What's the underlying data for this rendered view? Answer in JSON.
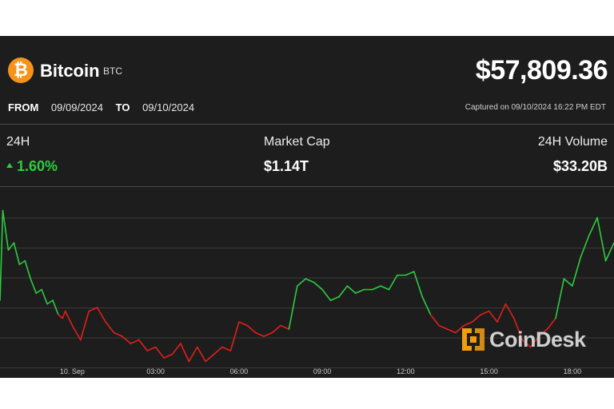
{
  "header": {
    "coin_name": "Bitcoin",
    "coin_symbol": "BTC",
    "logo_glyph": "₿",
    "price": "$57,809.36",
    "from_label": "FROM",
    "from_date": "09/09/2024",
    "to_label": "TO",
    "to_date": "09/10/2024",
    "captured": "Captured on 09/10/2024 16:22 PM EDT"
  },
  "stats": {
    "change_label": "24H",
    "change_value": "1.60%",
    "market_cap_label": "Market Cap",
    "market_cap_value": "$1.14T",
    "volume_label": "24H Volume",
    "volume_value": "$33.20B"
  },
  "watermark": {
    "text": "CoinDesk"
  },
  "colors": {
    "up": "#2ecc40",
    "down": "#e0201b",
    "background": "#1d1d1d",
    "logo": "#f7931a"
  },
  "chart_data": {
    "type": "line",
    "title": "",
    "xlabel": "",
    "ylabel": "",
    "x_ticks": [
      "10. Sep",
      "03:00",
      "06:00",
      "09:00",
      "12:00",
      "15:00",
      "18:00"
    ],
    "x_tick_hours": [
      0,
      3,
      6,
      9,
      12,
      15,
      18
    ],
    "x_range_hours": [
      -2.6,
      19.5
    ],
    "reference_price": 56900,
    "ylim": [
      56100,
      58300
    ],
    "grid": "horizontal",
    "series": [
      {
        "x_hours": [
          -2.6,
          -2.5,
          -2.3,
          -2.1,
          -1.9,
          -1.7,
          -1.5,
          -1.3,
          -1.1,
          -0.9,
          -0.7,
          -0.5,
          -0.35,
          -0.25,
          0,
          0.3,
          0.6,
          0.9,
          1.2,
          1.5,
          1.8,
          2.1,
          2.4,
          2.7,
          3.0,
          3.3,
          3.6,
          3.9,
          4.2,
          4.5,
          4.8,
          5.1,
          5.4,
          5.7,
          6.0,
          6.3,
          6.6,
          6.9,
          7.2,
          7.5,
          7.8,
          8.1,
          8.4,
          8.7,
          9.0,
          9.3,
          9.6,
          9.9,
          10.2,
          10.5,
          10.8,
          11.1,
          11.4,
          11.7,
          12.0,
          12.3,
          12.6,
          12.9,
          13.2,
          13.5,
          13.8,
          14.1,
          14.4,
          14.7,
          15.0,
          15.3,
          15.6,
          15.9,
          16.2,
          16.5,
          16.8,
          17.1,
          17.4,
          17.7,
          18.0,
          18.3,
          18.6,
          18.9,
          19.2,
          19.5
        ],
        "values": [
          57000,
          58250,
          57700,
          57800,
          57500,
          57550,
          57300,
          57100,
          57150,
          56950,
          57000,
          56800,
          56750,
          56850,
          56650,
          56450,
          56850,
          56900,
          56700,
          56550,
          56500,
          56400,
          56450,
          56300,
          56350,
          56200,
          56250,
          56400,
          56150,
          56350,
          56150,
          56250,
          56350,
          56300,
          56700,
          56650,
          56550,
          56500,
          56550,
          56650,
          56600,
          57200,
          57300,
          57250,
          57150,
          57000,
          57050,
          57200,
          57100,
          57150,
          57150,
          57200,
          57150,
          57350,
          57350,
          57400,
          57050,
          56800,
          56650,
          56600,
          56550,
          56650,
          56700,
          56800,
          56850,
          56700,
          56950,
          56750,
          56450,
          56350,
          56500,
          56600,
          56750,
          57300,
          57200,
          57600,
          57900,
          58150,
          57550,
          57800
        ]
      }
    ]
  }
}
